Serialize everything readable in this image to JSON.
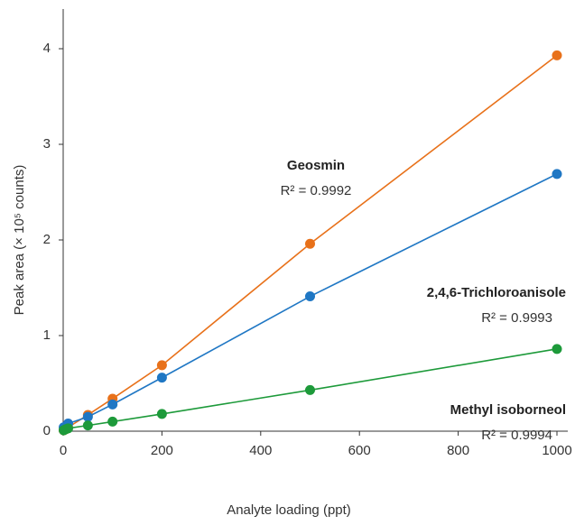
{
  "chart_data": {
    "type": "line",
    "x_label": "Analyte loading (ppt)",
    "y_label": "Peak area (× 10⁵ counts)",
    "xlim": [
      0,
      1000
    ],
    "xticks": [
      0,
      200,
      400,
      600,
      800,
      1000
    ],
    "ylim": [
      0,
      4
    ],
    "yticks": [
      0,
      1,
      2,
      3,
      4
    ],
    "x": [
      1,
      5,
      10,
      50,
      100,
      200,
      500,
      1000
    ],
    "series": [
      {
        "name": "Geosmin",
        "color": "#e8711a",
        "values": [
          0.01,
          0.02,
          0.04,
          0.17,
          0.34,
          0.69,
          1.96,
          3.93
        ]
      },
      {
        "name": "2,4,6-Trichloroanisole",
        "color": "#1f77c4",
        "values": [
          0.04,
          0.05,
          0.08,
          0.15,
          0.28,
          0.56,
          1.41,
          2.69
        ]
      },
      {
        "name": "Methyl isoborneol",
        "color": "#1d9a3a",
        "values": [
          0.01,
          0.02,
          0.03,
          0.06,
          0.1,
          0.18,
          0.43,
          0.86
        ]
      }
    ],
    "annotations": [
      {
        "text": "Geosmin",
        "r2": "R² = 0.9992"
      },
      {
        "text": "2,4,6-Trichloroanisole",
        "r2": "R² = 0.9993"
      },
      {
        "text": "Methyl isoborneol",
        "r2": "R² = 0.9994"
      }
    ]
  }
}
